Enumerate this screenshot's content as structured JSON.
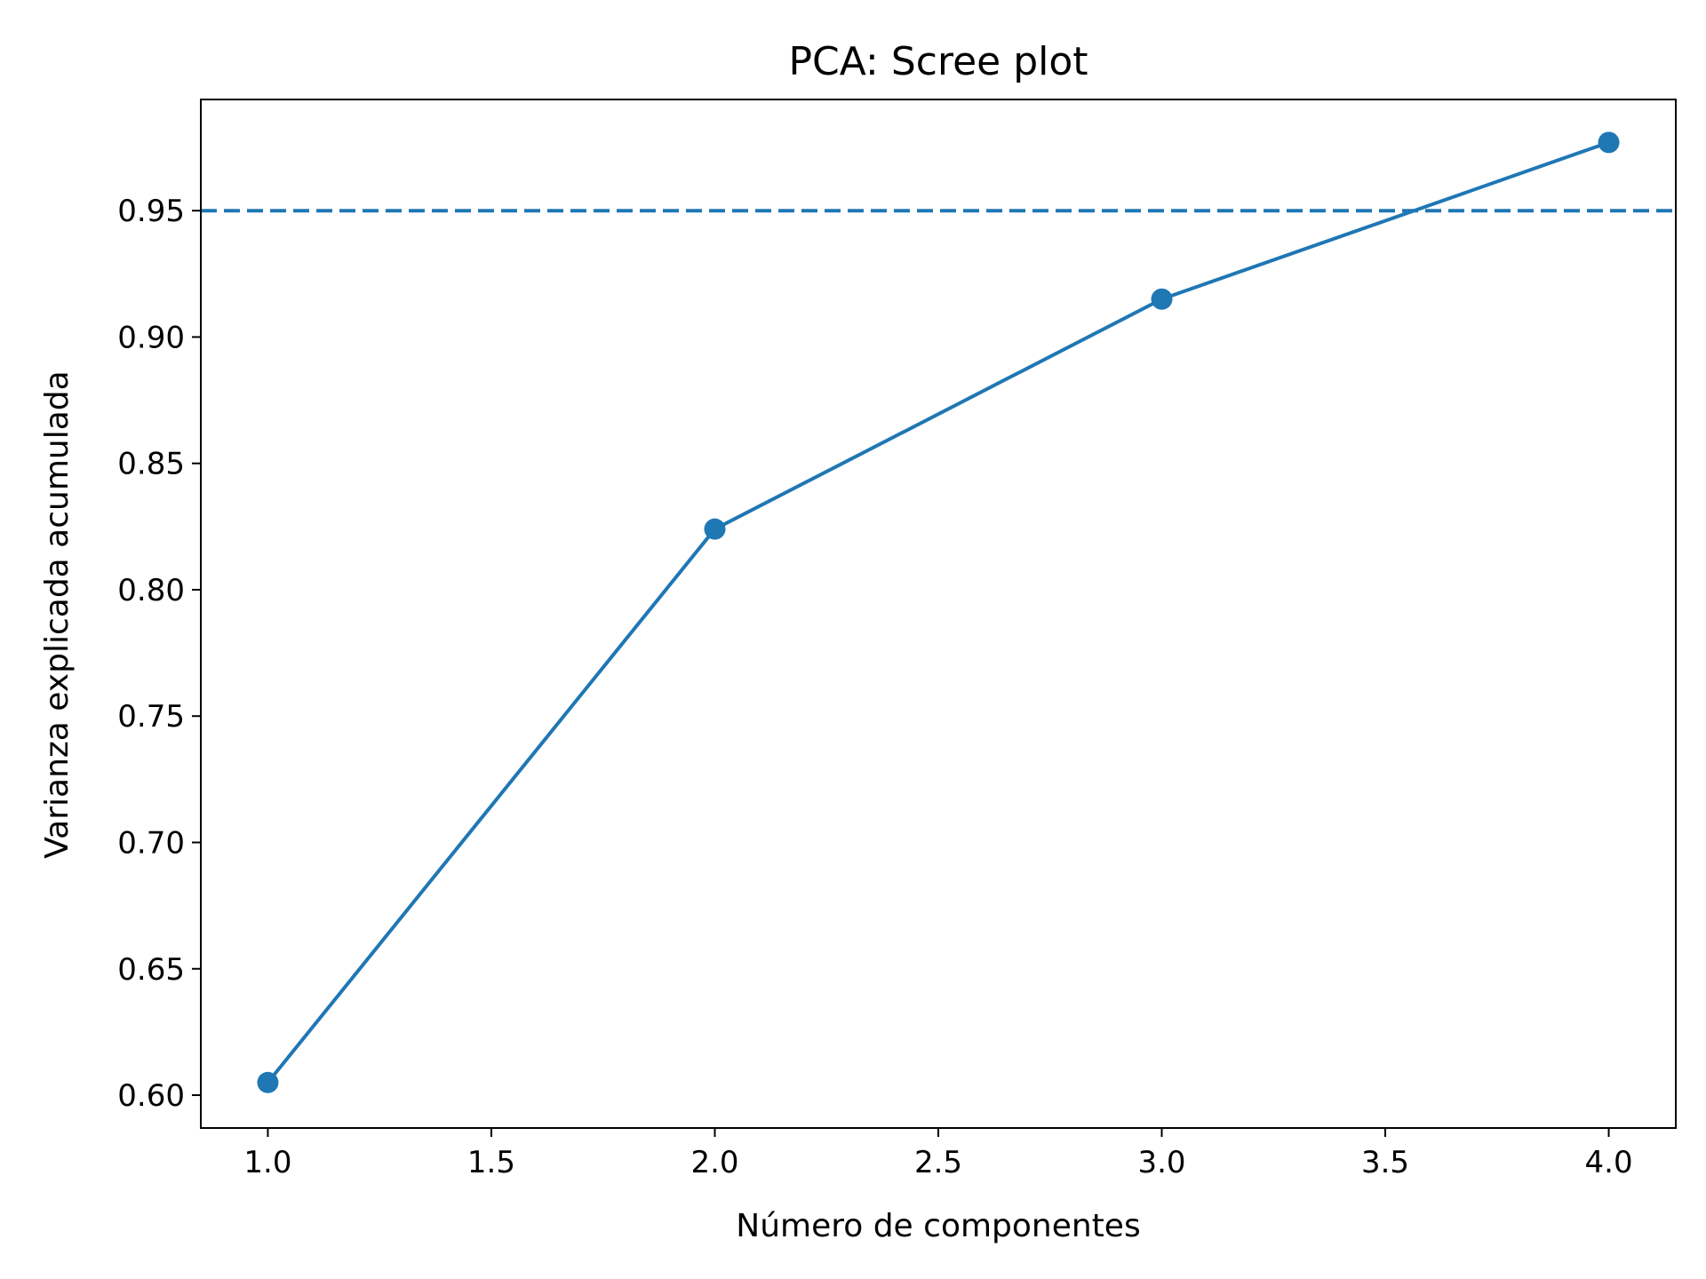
{
  "chart_data": {
    "type": "line",
    "title": "PCA: Scree plot",
    "xlabel": "Número de componentes",
    "ylabel": "Varianza explicada acumulada",
    "xlim": [
      0.85,
      4.15
    ],
    "ylim": [
      0.587,
      0.994
    ],
    "xticks": [
      1.0,
      1.5,
      2.0,
      2.5,
      3.0,
      3.5,
      4.0
    ],
    "xtick_labels": [
      "1.0",
      "1.5",
      "2.0",
      "2.5",
      "3.0",
      "3.5",
      "4.0"
    ],
    "yticks": [
      0.6,
      0.65,
      0.7,
      0.75,
      0.8,
      0.85,
      0.9,
      0.95
    ],
    "ytick_labels": [
      "0.60",
      "0.65",
      "0.70",
      "0.75",
      "0.80",
      "0.85",
      "0.90",
      "0.95"
    ],
    "grid": false,
    "series": [
      {
        "x": [
          1,
          2,
          3,
          4
        ],
        "values": [
          0.605,
          0.824,
          0.915,
          0.977
        ],
        "color": "#1f77b4",
        "marker": "circle"
      }
    ],
    "reference_lines": [
      {
        "orientation": "horizontal",
        "y": 0.95,
        "style": "dashed",
        "color": "#1f77b4"
      }
    ]
  }
}
